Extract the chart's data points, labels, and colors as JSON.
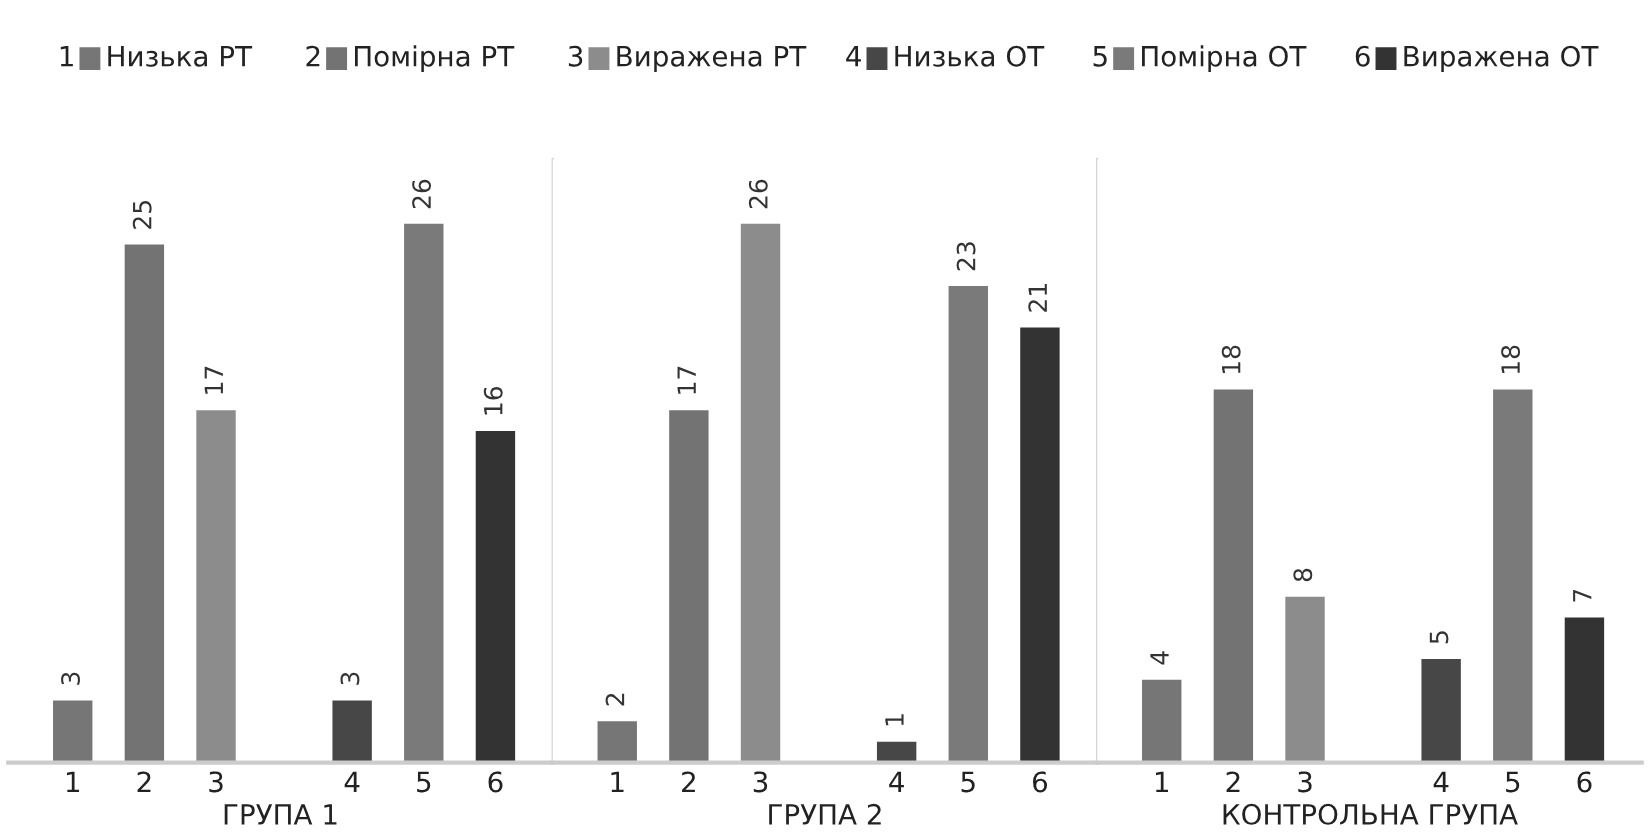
{
  "chart_data": [
    {
      "type": "bar",
      "categories": [
        "1",
        "2",
        "3",
        "4",
        "5",
        "6"
      ],
      "xlabel": "ГРУПА 1",
      "data_labels": true,
      "legend": "top",
      "grid": false,
      "series": [
        {
          "name": "Низька РТ",
          "color": "#767676",
          "values": [
            3,
            null,
            null,
            null,
            null,
            null
          ]
        },
        {
          "name": "Помірна РТ",
          "color": "#737373",
          "values": [
            null,
            25,
            null,
            null,
            null,
            null
          ]
        },
        {
          "name": "Виражена РТ",
          "color": "#8c8c8c",
          "values": [
            null,
            null,
            17,
            null,
            null,
            null
          ]
        },
        {
          "name": "Низька ОТ",
          "color": "#474747",
          "values": [
            null,
            null,
            null,
            3,
            null,
            null
          ]
        },
        {
          "name": "Помірна ОТ",
          "color": "#7a7a7a",
          "values": [
            null,
            null,
            null,
            null,
            26,
            null
          ]
        },
        {
          "name": "Виражена ОТ",
          "color": "#333333",
          "values": [
            null,
            null,
            null,
            null,
            null,
            16
          ]
        }
      ]
    },
    {
      "type": "bar",
      "categories": [
        "1",
        "2",
        "3",
        "4",
        "5",
        "6"
      ],
      "xlabel": "ГРУПА 2",
      "data_labels": true,
      "grid": false,
      "values": [
        2,
        17,
        26,
        1,
        23,
        21
      ],
      "colors": [
        "#767676",
        "#737373",
        "#8c8c8c",
        "#474747",
        "#7a7a7a",
        "#333333"
      ]
    },
    {
      "type": "bar",
      "categories": [
        "1",
        "2",
        "3",
        "4",
        "5",
        "6"
      ],
      "xlabel": "КОНТРОЛЬНА ГРУПА",
      "data_labels": true,
      "grid": false,
      "values": [
        4,
        18,
        8,
        5,
        18,
        7
      ],
      "colors": [
        "#767676",
        "#737373",
        "#8c8c8c",
        "#474747",
        "#7a7a7a",
        "#333333"
      ]
    }
  ]
}
